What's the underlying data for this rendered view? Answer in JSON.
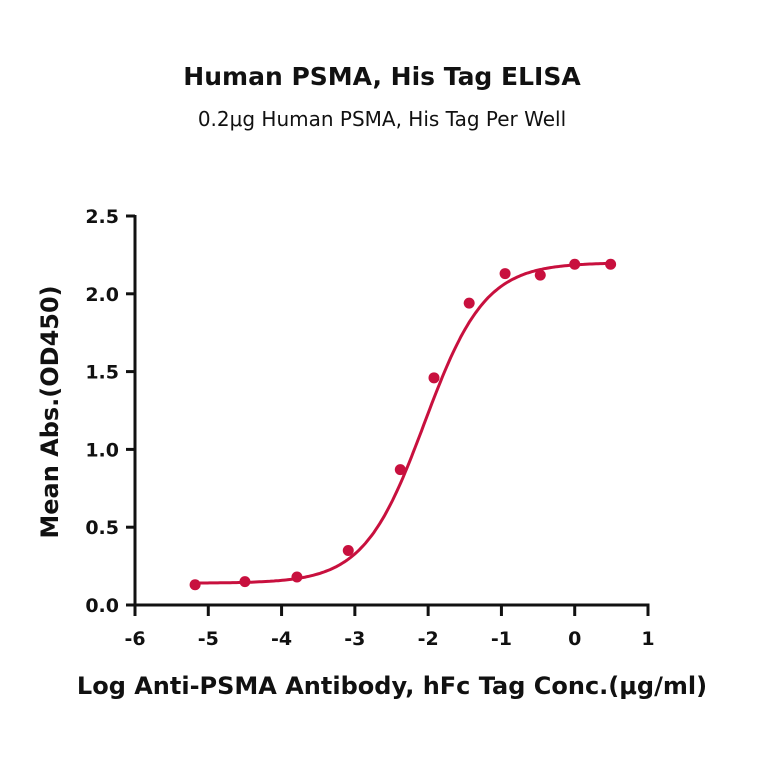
{
  "chart_data": {
    "type": "line",
    "title": "Human PSMA, His Tag ELISA",
    "subtitle": "0.2μg Human PSMA, His Tag Per Well",
    "xlabel": "Log Anti-PSMA Antibody, hFc Tag Conc.(μg/ml)",
    "ylabel": "Mean Abs.(OD450)",
    "xlim": [
      -6,
      1
    ],
    "ylim": [
      0,
      2.5
    ],
    "x_ticks": [
      "-6",
      "-5",
      "-4",
      "-3",
      "-2",
      "-1",
      "0",
      "1"
    ],
    "y_ticks": [
      "0.0",
      "0.5",
      "1.0",
      "1.5",
      "2.0",
      "2.5"
    ],
    "grid": false,
    "legend": null,
    "series": [
      {
        "name": "Mean Abs.(OD450)",
        "color": "#c8103e",
        "marker": "circle",
        "fit": "4-parameter logistic curve",
        "x": [
          -5.18,
          -4.5,
          -3.79,
          -3.09,
          -2.38,
          -1.92,
          -1.44,
          -0.95,
          -0.47,
          0.0,
          0.49
        ],
        "y": [
          0.13,
          0.15,
          0.18,
          0.35,
          0.87,
          1.46,
          1.94,
          2.13,
          2.12,
          2.19,
          2.19
        ]
      }
    ],
    "fit_params": {
      "bottom": 0.14,
      "top": 2.2,
      "log_ec50": -2.05,
      "hill": 1.05
    }
  }
}
